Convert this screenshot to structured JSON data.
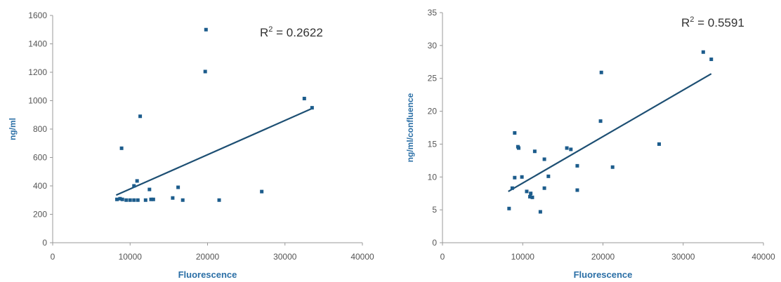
{
  "chart_data": [
    {
      "type": "scatter",
      "xlabel": "Fluorescence",
      "ylabel": "ng/ml",
      "xlim": [
        0,
        40000
      ],
      "ylim": [
        0,
        1600
      ],
      "xticks": [
        0,
        10000,
        20000,
        30000,
        40000
      ],
      "yticks": [
        0,
        200,
        400,
        600,
        800,
        1000,
        1200,
        1400,
        1600
      ],
      "annotation": {
        "base": "R",
        "superscript": "2",
        "text": " = 0.2622"
      },
      "trendline": {
        "x": [
          8200,
          33500
        ],
        "y": [
          335,
          945
        ]
      },
      "points": [
        {
          "x": 8300,
          "y": 305
        },
        {
          "x": 8700,
          "y": 310
        },
        {
          "x": 9000,
          "y": 305
        },
        {
          "x": 9500,
          "y": 300
        },
        {
          "x": 10000,
          "y": 300
        },
        {
          "x": 10500,
          "y": 300
        },
        {
          "x": 11000,
          "y": 300
        },
        {
          "x": 12000,
          "y": 300
        },
        {
          "x": 12700,
          "y": 305
        },
        {
          "x": 13000,
          "y": 305
        },
        {
          "x": 10500,
          "y": 400
        },
        {
          "x": 10900,
          "y": 435
        },
        {
          "x": 12500,
          "y": 375
        },
        {
          "x": 8900,
          "y": 665
        },
        {
          "x": 11300,
          "y": 890
        },
        {
          "x": 15500,
          "y": 315
        },
        {
          "x": 16200,
          "y": 390
        },
        {
          "x": 16800,
          "y": 300
        },
        {
          "x": 21500,
          "y": 300
        },
        {
          "x": 27000,
          "y": 360
        },
        {
          "x": 19700,
          "y": 1205
        },
        {
          "x": 19800,
          "y": 1500
        },
        {
          "x": 32500,
          "y": 1015
        },
        {
          "x": 33500,
          "y": 950
        }
      ],
      "colors": {
        "marker": "#1c5c8c",
        "trendline": "#1d4f73",
        "axis_label": "#2b6fa6",
        "tick": "#555555",
        "axis": "#999999"
      }
    },
    {
      "type": "scatter",
      "xlabel": "Fluorescence",
      "ylabel": "ng/ml/confluence",
      "xlim": [
        0,
        40000
      ],
      "ylim": [
        0,
        35
      ],
      "xticks": [
        0,
        10000,
        20000,
        30000,
        40000
      ],
      "yticks": [
        0,
        5,
        10,
        15,
        20,
        25,
        30,
        35
      ],
      "annotation": {
        "base": "R",
        "superscript": "2",
        "text": " = 0.5591"
      },
      "trendline": {
        "x": [
          8200,
          33500
        ],
        "y": [
          7.8,
          25.7
        ]
      },
      "points": [
        {
          "x": 8300,
          "y": 5.2
        },
        {
          "x": 8700,
          "y": 8.3
        },
        {
          "x": 9000,
          "y": 16.7
        },
        {
          "x": 9000,
          "y": 9.9
        },
        {
          "x": 9400,
          "y": 14.6
        },
        {
          "x": 9500,
          "y": 14.4
        },
        {
          "x": 9900,
          "y": 10.0
        },
        {
          "x": 10500,
          "y": 7.8
        },
        {
          "x": 10900,
          "y": 7.0
        },
        {
          "x": 11000,
          "y": 7.5
        },
        {
          "x": 11200,
          "y": 6.9
        },
        {
          "x": 11500,
          "y": 13.9
        },
        {
          "x": 12200,
          "y": 4.7
        },
        {
          "x": 12700,
          "y": 12.7
        },
        {
          "x": 12700,
          "y": 8.3
        },
        {
          "x": 13200,
          "y": 10.1
        },
        {
          "x": 15500,
          "y": 14.4
        },
        {
          "x": 16000,
          "y": 14.2
        },
        {
          "x": 16800,
          "y": 8.0
        },
        {
          "x": 16800,
          "y": 11.7
        },
        {
          "x": 19700,
          "y": 18.5
        },
        {
          "x": 19800,
          "y": 25.9
        },
        {
          "x": 21200,
          "y": 11.5
        },
        {
          "x": 27000,
          "y": 15.0
        },
        {
          "x": 32500,
          "y": 29.0
        },
        {
          "x": 33500,
          "y": 27.9
        }
      ],
      "colors": {
        "marker": "#1c5c8c",
        "trendline": "#1d4f73",
        "axis_label": "#2b6fa6",
        "tick": "#555555",
        "axis": "#999999"
      }
    }
  ]
}
